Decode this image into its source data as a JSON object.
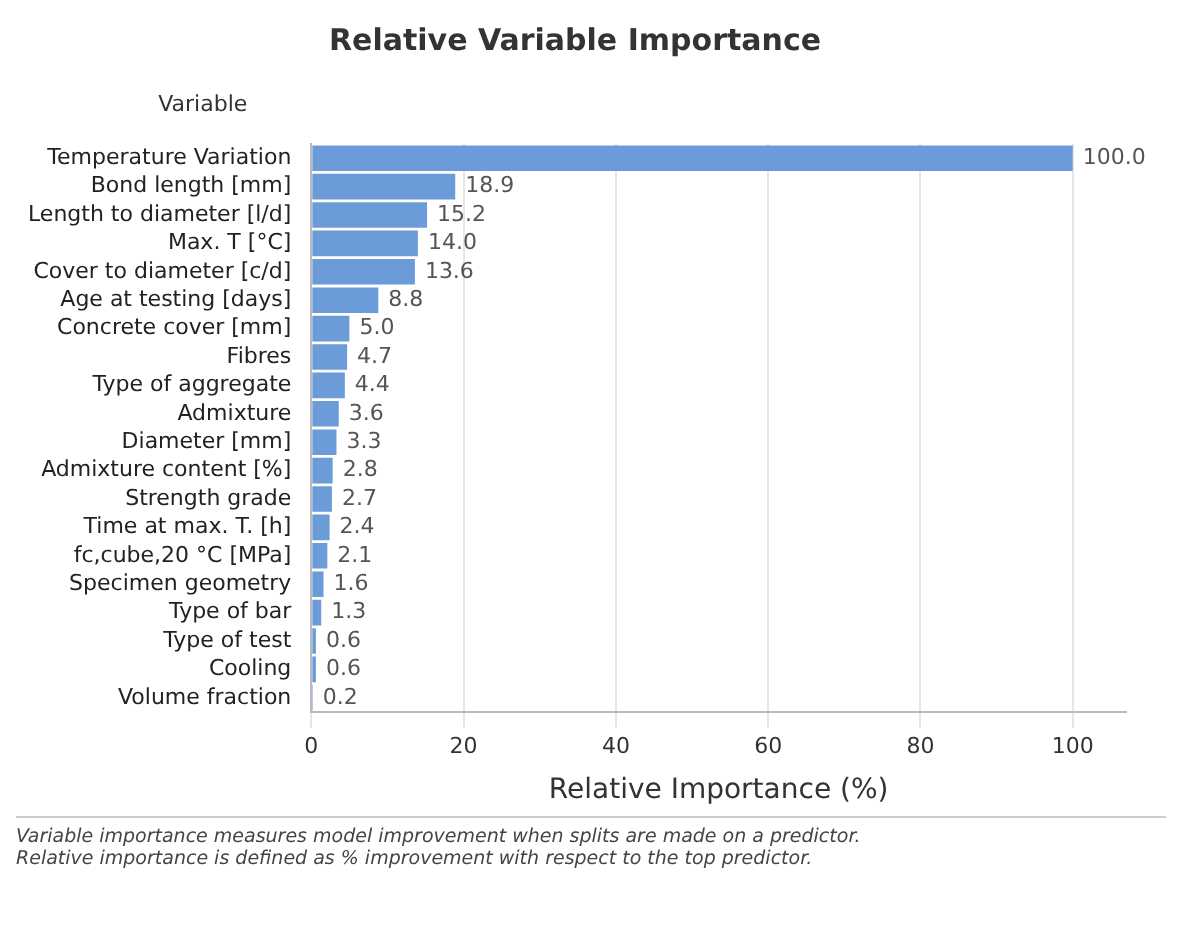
{
  "chart_data": {
    "type": "bar",
    "orientation": "horizontal",
    "title": "Relative Variable Importance",
    "ylabel": "Variable",
    "xlabel": "Relative Importance (%)",
    "categories": [
      "Temperature Variation",
      "Bond length [mm]",
      "Length to diameter [l/d]",
      "Max. T [°C]",
      "Cover to diameter [c/d]",
      "Age at testing [days]",
      "Concrete cover [mm]",
      "Fibres",
      "Type of aggregate",
      "Admixture",
      "Diameter [mm]",
      "Admixture content [%]",
      "Strength grade",
      "Time at max. T. [h]",
      "fc,cube,20 °C [MPa]",
      "Specimen geometry",
      "Type of bar",
      "Type of test",
      "Cooling",
      "Volume fraction"
    ],
    "values": [
      100.0,
      18.9,
      15.2,
      14.0,
      13.6,
      8.8,
      5.0,
      4.7,
      4.4,
      3.6,
      3.3,
      2.8,
      2.7,
      2.4,
      2.1,
      1.6,
      1.3,
      0.6,
      0.6,
      0.2
    ],
    "value_labels": [
      "100.0",
      "18.9",
      "15.2",
      "14.0",
      "13.6",
      "8.8",
      "5.0",
      "4.7",
      "4.4",
      "3.6",
      "3.3",
      "2.8",
      "2.7",
      "2.4",
      "2.1",
      "1.6",
      "1.3",
      "0.6",
      "0.6",
      "0.2"
    ],
    "color": "#6b9bd8",
    "xlim": [
      0,
      107
    ],
    "xticks": [
      0,
      20,
      40,
      60,
      80,
      100
    ],
    "grid": "x",
    "legend": false,
    "annotations": [
      "Variable importance measures model improvement when splits are made on a predictor.",
      "Relative importance is defined as % improvement with respect to the top predictor."
    ]
  }
}
